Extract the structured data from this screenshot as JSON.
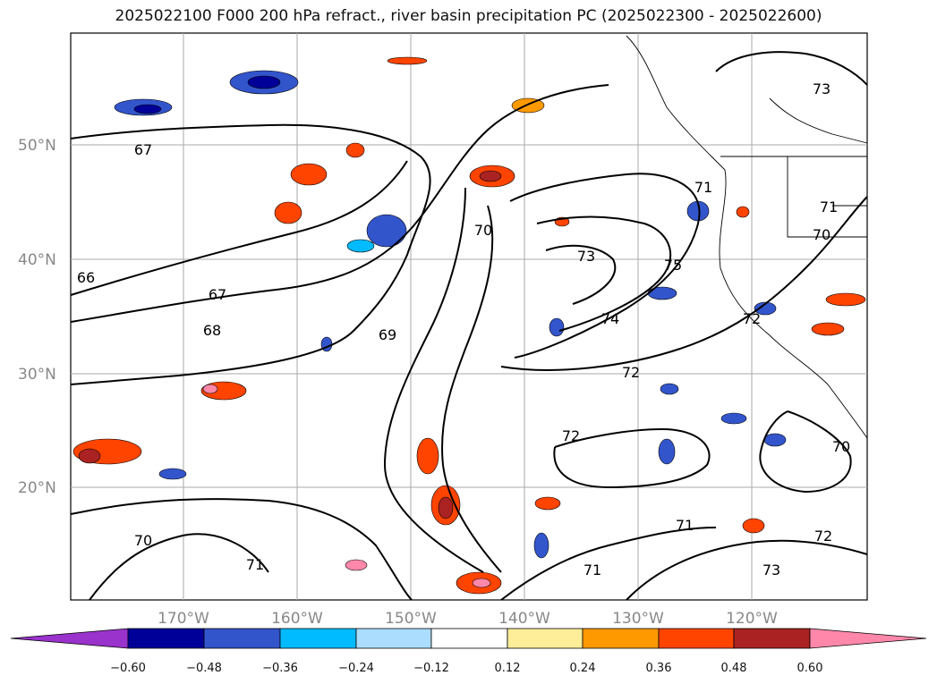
{
  "title": "2025022100 F000 200 hPa refract., river basin precipitation PC (2025022300 - 2025022600)",
  "map": {
    "lat_labels": [
      "50°N",
      "40°N",
      "30°N",
      "20°N"
    ],
    "lon_labels": [
      "170°W",
      "160°W",
      "150°W",
      "140°W",
      "130°W",
      "120°W"
    ],
    "contour_labels": [
      "67",
      "66",
      "67",
      "68",
      "69",
      "70",
      "71",
      "72",
      "72",
      "73",
      "74",
      "75",
      "73",
      "72",
      "71",
      "70",
      "70",
      "70",
      "71",
      "71",
      "71",
      "73",
      "72"
    ],
    "colors": {
      "land_outline": "#000000",
      "grid": "#999999"
    }
  },
  "colorbar": {
    "ticks": [
      "−0.60",
      "−0.48",
      "−0.36",
      "−0.24",
      "−0.12",
      "0.12",
      "0.24",
      "0.36",
      "0.48",
      "0.60"
    ],
    "colors": [
      "#9933cc",
      "#000099",
      "#3355cc",
      "#00bbff",
      "#aaddff",
      "#ffffff",
      "#ffee99",
      "#ff9900",
      "#ff4400",
      "#aa2222",
      "#ff88aa"
    ]
  }
}
